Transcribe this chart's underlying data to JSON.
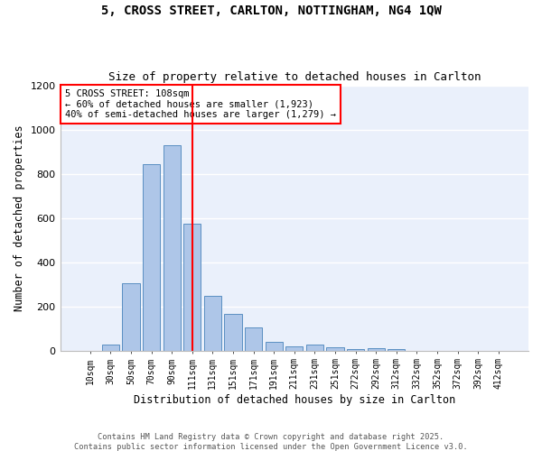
{
  "title_line1": "5, CROSS STREET, CARLTON, NOTTINGHAM, NG4 1QW",
  "title_line2": "Size of property relative to detached houses in Carlton",
  "xlabel": "Distribution of detached houses by size in Carlton",
  "ylabel": "Number of detached properties",
  "bar_categories": [
    "10sqm",
    "30sqm",
    "50sqm",
    "70sqm",
    "90sqm",
    "111sqm",
    "131sqm",
    "151sqm",
    "171sqm",
    "191sqm",
    "211sqm",
    "231sqm",
    "251sqm",
    "272sqm",
    "292sqm",
    "312sqm",
    "332sqm",
    "352sqm",
    "372sqm",
    "392sqm",
    "412sqm"
  ],
  "bar_values": [
    0,
    25,
    305,
    845,
    930,
    575,
    248,
    165,
    105,
    38,
    20,
    27,
    15,
    8,
    10,
    8,
    0,
    0,
    0,
    0,
    0
  ],
  "bar_color": "#aec6e8",
  "bar_edge_color": "#5a8fc2",
  "vline_color": "red",
  "annotation_text": "5 CROSS STREET: 108sqm\n← 60% of detached houses are smaller (1,923)\n40% of semi-detached houses are larger (1,279) →",
  "annotation_box_color": "white",
  "annotation_box_edge_color": "red",
  "ylim": [
    0,
    1200
  ],
  "yticks": [
    0,
    200,
    400,
    600,
    800,
    1000,
    1200
  ],
  "bg_color": "#eaf0fb",
  "grid_color": "white",
  "footer_line1": "Contains HM Land Registry data © Crown copyright and database right 2025.",
  "footer_line2": "Contains public sector information licensed under the Open Government Licence v3.0."
}
